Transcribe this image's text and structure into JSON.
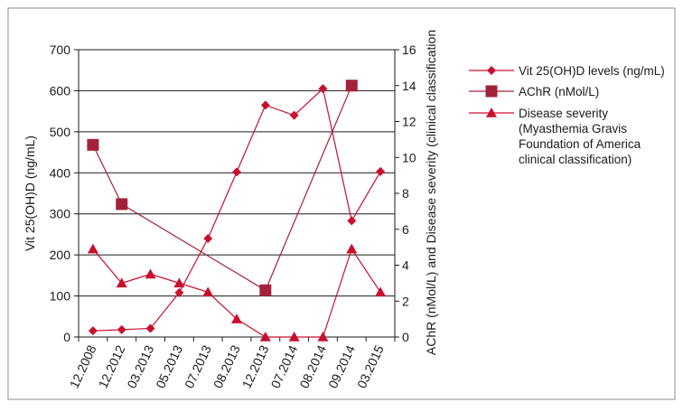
{
  "chart_data": {
    "type": "line",
    "categories": [
      "12.2008",
      "12.2012",
      "03.2013",
      "05.2013",
      "07.2013",
      "08.2013",
      "12.2013",
      "07.2014",
      "08.2014",
      "09.2014",
      "03.2015"
    ],
    "y_left": {
      "label": "Vit 25(OH)D (ng/mL)",
      "min": 0,
      "max": 700,
      "ticks": [
        0,
        100,
        200,
        300,
        400,
        500,
        600,
        700
      ]
    },
    "y_right": {
      "label": "AChR (nMol/L) and Disease severity (clinical classification",
      "min": 0,
      "max": 16,
      "ticks": [
        0,
        2,
        4,
        6,
        8,
        10,
        12,
        14,
        16
      ]
    },
    "grid": "horizontal",
    "legend_position": "right",
    "series": [
      {
        "name": "Vit 25(OH)D levels (ng/mL)",
        "axis": "left",
        "marker": "diamond",
        "color": "#c8102e",
        "values": [
          15,
          18,
          21,
          108,
          240,
          402,
          565,
          540,
          605,
          283,
          403
        ]
      },
      {
        "name": "AChR (nMol/L)",
        "axis": "right",
        "marker": "square",
        "color": "#a3213a",
        "values": [
          10.7,
          7.4,
          null,
          null,
          null,
          null,
          2.6,
          null,
          null,
          14.0,
          null
        ]
      },
      {
        "name": "Disease severity (Myasthemia Gravis Foundation of America clinical classification)",
        "axis": "right",
        "marker": "triangle",
        "color": "#c8102e",
        "values": [
          4.9,
          3.0,
          3.5,
          3.0,
          2.5,
          1.0,
          0.0,
          0.0,
          0.0,
          4.9,
          2.5
        ]
      }
    ],
    "legend_lines": [
      [
        "Vit 25(OH)D levels (ng/mL)"
      ],
      [
        "AChR (nMol/L)"
      ],
      [
        "Disease severity",
        "(Myasthemia Gravis",
        "Foundation of America",
        "clinical classification)"
      ]
    ]
  }
}
